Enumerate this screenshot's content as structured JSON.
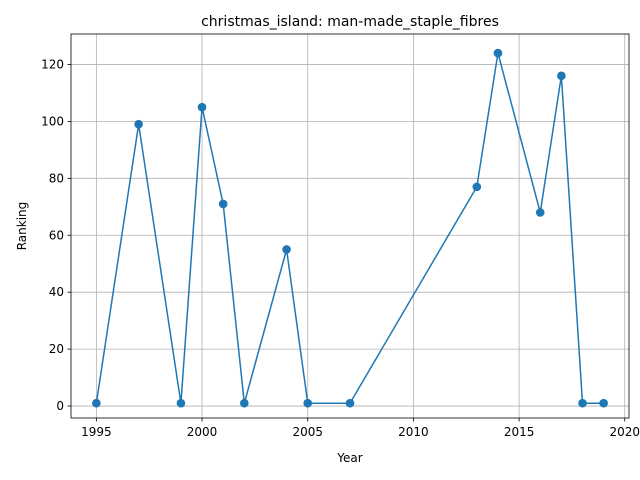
{
  "chart_data": {
    "type": "line",
    "title": "christmas_island: man-made_staple_fibres",
    "xlabel": "Year",
    "ylabel": "Ranking",
    "xlim": [
      1993.8,
      2020.2
    ],
    "ylim": [
      -4.2,
      130.7
    ],
    "xticks": [
      1995,
      2000,
      2005,
      2010,
      2015,
      2020
    ],
    "yticks": [
      0,
      20,
      40,
      60,
      80,
      100,
      120
    ],
    "grid": true,
    "series": [
      {
        "color": "#1f77b4",
        "marker": "circle",
        "x": [
          1995,
          1997,
          1999,
          2000,
          2001,
          2002,
          2004,
          2005,
          2007,
          2013,
          2014,
          2016,
          2017,
          2018,
          2019
        ],
        "y": [
          1,
          99,
          1,
          105,
          71,
          1,
          55,
          1,
          1,
          77,
          124,
          68,
          116,
          1,
          1
        ]
      }
    ]
  }
}
